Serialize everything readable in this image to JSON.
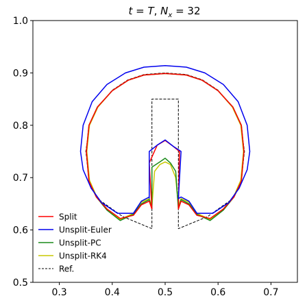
{
  "chart_data": {
    "type": "line",
    "title_parts": [
      "t",
      " = ",
      "T",
      ", ",
      "N",
      "x",
      " = 32"
    ],
    "xlim": [
      0.25,
      0.75
    ],
    "ylim": [
      0.5,
      1.0
    ],
    "xticks": [
      0.3,
      0.4,
      0.5,
      0.6,
      0.7
    ],
    "xtick_labels": [
      "0.3",
      "0.4",
      "0.5",
      "0.6",
      "0.7"
    ],
    "yticks": [
      0.5,
      0.6,
      0.7,
      0.8,
      0.9,
      1.0
    ],
    "ytick_labels": [
      "0.5",
      "0.6",
      "0.7",
      "0.8",
      "0.9",
      "1.0"
    ],
    "grid": false,
    "legend_position": "lower-left",
    "series": [
      {
        "name": "Ref.",
        "color": "#000000",
        "dash": "dashed",
        "points": [
          [
            0.475,
            0.6025
          ],
          [
            0.42,
            0.6255
          ],
          [
            0.372,
            0.66
          ],
          [
            0.357,
            0.69
          ],
          [
            0.35,
            0.75
          ],
          [
            0.357,
            0.8
          ],
          [
            0.373,
            0.835
          ],
          [
            0.4,
            0.867
          ],
          [
            0.43,
            0.887
          ],
          [
            0.46,
            0.897
          ],
          [
            0.5,
            0.9
          ],
          [
            0.54,
            0.897
          ],
          [
            0.57,
            0.887
          ],
          [
            0.6,
            0.867
          ],
          [
            0.627,
            0.835
          ],
          [
            0.643,
            0.8
          ],
          [
            0.65,
            0.75
          ],
          [
            0.643,
            0.69
          ],
          [
            0.628,
            0.66
          ],
          [
            0.58,
            0.6255
          ],
          [
            0.525,
            0.6025
          ],
          [
            0.525,
            0.85
          ],
          [
            0.475,
            0.85
          ],
          [
            0.475,
            0.6025
          ]
        ]
      },
      {
        "name": "Unsplit-RK4",
        "color": "#c8c800",
        "dash": "solid",
        "points": [
          [
            0.475,
            0.645
          ],
          [
            0.47,
            0.66
          ],
          [
            0.455,
            0.653
          ],
          [
            0.44,
            0.632
          ],
          [
            0.415,
            0.62
          ],
          [
            0.39,
            0.64
          ],
          [
            0.37,
            0.665
          ],
          [
            0.357,
            0.695
          ],
          [
            0.352,
            0.75
          ],
          [
            0.357,
            0.8
          ],
          [
            0.373,
            0.835
          ],
          [
            0.4,
            0.866
          ],
          [
            0.43,
            0.886
          ],
          [
            0.46,
            0.896
          ],
          [
            0.5,
            0.899
          ],
          [
            0.54,
            0.896
          ],
          [
            0.57,
            0.886
          ],
          [
            0.6,
            0.866
          ],
          [
            0.627,
            0.835
          ],
          [
            0.643,
            0.8
          ],
          [
            0.648,
            0.75
          ],
          [
            0.643,
            0.695
          ],
          [
            0.63,
            0.665
          ],
          [
            0.61,
            0.64
          ],
          [
            0.585,
            0.62
          ],
          [
            0.56,
            0.632
          ],
          [
            0.545,
            0.653
          ],
          [
            0.53,
            0.66
          ],
          [
            0.525,
            0.645
          ],
          [
            0.52,
            0.7
          ],
          [
            0.51,
            0.725
          ],
          [
            0.5,
            0.73
          ],
          [
            0.49,
            0.725
          ],
          [
            0.48,
            0.712
          ],
          [
            0.475,
            0.645
          ]
        ]
      },
      {
        "name": "Unsplit-PC",
        "color": "#1a8a1a",
        "dash": "solid",
        "points": [
          [
            0.475,
            0.64
          ],
          [
            0.47,
            0.658
          ],
          [
            0.455,
            0.65
          ],
          [
            0.44,
            0.63
          ],
          [
            0.415,
            0.618
          ],
          [
            0.39,
            0.638
          ],
          [
            0.37,
            0.663
          ],
          [
            0.356,
            0.693
          ],
          [
            0.351,
            0.75
          ],
          [
            0.356,
            0.8
          ],
          [
            0.372,
            0.835
          ],
          [
            0.4,
            0.866
          ],
          [
            0.43,
            0.886
          ],
          [
            0.46,
            0.896
          ],
          [
            0.5,
            0.899
          ],
          [
            0.54,
            0.896
          ],
          [
            0.57,
            0.886
          ],
          [
            0.6,
            0.866
          ],
          [
            0.628,
            0.835
          ],
          [
            0.644,
            0.8
          ],
          [
            0.649,
            0.75
          ],
          [
            0.644,
            0.693
          ],
          [
            0.63,
            0.663
          ],
          [
            0.61,
            0.638
          ],
          [
            0.585,
            0.618
          ],
          [
            0.56,
            0.63
          ],
          [
            0.545,
            0.65
          ],
          [
            0.53,
            0.658
          ],
          [
            0.525,
            0.64
          ],
          [
            0.52,
            0.712
          ],
          [
            0.51,
            0.728
          ],
          [
            0.5,
            0.737
          ],
          [
            0.49,
            0.73
          ],
          [
            0.475,
            0.72
          ],
          [
            0.475,
            0.64
          ]
        ]
      },
      {
        "name": "Split",
        "color": "#ff0000",
        "dash": "solid",
        "points": [
          [
            0.475,
            0.64
          ],
          [
            0.47,
            0.655
          ],
          [
            0.455,
            0.648
          ],
          [
            0.44,
            0.628
          ],
          [
            0.415,
            0.622
          ],
          [
            0.39,
            0.64
          ],
          [
            0.37,
            0.663
          ],
          [
            0.356,
            0.693
          ],
          [
            0.351,
            0.75
          ],
          [
            0.356,
            0.8
          ],
          [
            0.372,
            0.835
          ],
          [
            0.4,
            0.866
          ],
          [
            0.43,
            0.886
          ],
          [
            0.46,
            0.896
          ],
          [
            0.5,
            0.899
          ],
          [
            0.54,
            0.896
          ],
          [
            0.57,
            0.886
          ],
          [
            0.6,
            0.866
          ],
          [
            0.628,
            0.835
          ],
          [
            0.644,
            0.8
          ],
          [
            0.649,
            0.75
          ],
          [
            0.644,
            0.693
          ],
          [
            0.63,
            0.663
          ],
          [
            0.61,
            0.64
          ],
          [
            0.585,
            0.622
          ],
          [
            0.56,
            0.628
          ],
          [
            0.545,
            0.648
          ],
          [
            0.53,
            0.655
          ],
          [
            0.525,
            0.64
          ],
          [
            0.527,
            0.75
          ],
          [
            0.515,
            0.76
          ],
          [
            0.5,
            0.771
          ],
          [
            0.485,
            0.762
          ],
          [
            0.47,
            0.728
          ],
          [
            0.475,
            0.64
          ]
        ]
      },
      {
        "name": "Unsplit-Euler",
        "color": "#0000ee",
        "dash": "solid",
        "points": [
          [
            0.47,
            0.66
          ],
          [
            0.47,
            0.663
          ],
          [
            0.455,
            0.655
          ],
          [
            0.44,
            0.632
          ],
          [
            0.41,
            0.632
          ],
          [
            0.38,
            0.652
          ],
          [
            0.36,
            0.68
          ],
          [
            0.345,
            0.715
          ],
          [
            0.34,
            0.75
          ],
          [
            0.345,
            0.8
          ],
          [
            0.362,
            0.845
          ],
          [
            0.39,
            0.878
          ],
          [
            0.425,
            0.9
          ],
          [
            0.46,
            0.911
          ],
          [
            0.5,
            0.914
          ],
          [
            0.54,
            0.911
          ],
          [
            0.575,
            0.9
          ],
          [
            0.61,
            0.878
          ],
          [
            0.638,
            0.845
          ],
          [
            0.655,
            0.8
          ],
          [
            0.66,
            0.75
          ],
          [
            0.655,
            0.715
          ],
          [
            0.64,
            0.68
          ],
          [
            0.62,
            0.652
          ],
          [
            0.59,
            0.632
          ],
          [
            0.56,
            0.632
          ],
          [
            0.545,
            0.655
          ],
          [
            0.53,
            0.663
          ],
          [
            0.525,
            0.66
          ],
          [
            0.53,
            0.75
          ],
          [
            0.515,
            0.76
          ],
          [
            0.5,
            0.772
          ],
          [
            0.485,
            0.762
          ],
          [
            0.47,
            0.75
          ],
          [
            0.47,
            0.66
          ]
        ]
      }
    ],
    "legend": [
      {
        "name": "Split",
        "color": "#ff0000",
        "dash": "solid"
      },
      {
        "name": "Unsplit-Euler",
        "color": "#0000ee",
        "dash": "solid"
      },
      {
        "name": "Unsplit-PC",
        "color": "#1a8a1a",
        "dash": "solid"
      },
      {
        "name": "Unsplit-RK4",
        "color": "#c8c800",
        "dash": "solid"
      },
      {
        "name": "Ref.",
        "color": "#000000",
        "dash": "dashed"
      }
    ]
  }
}
